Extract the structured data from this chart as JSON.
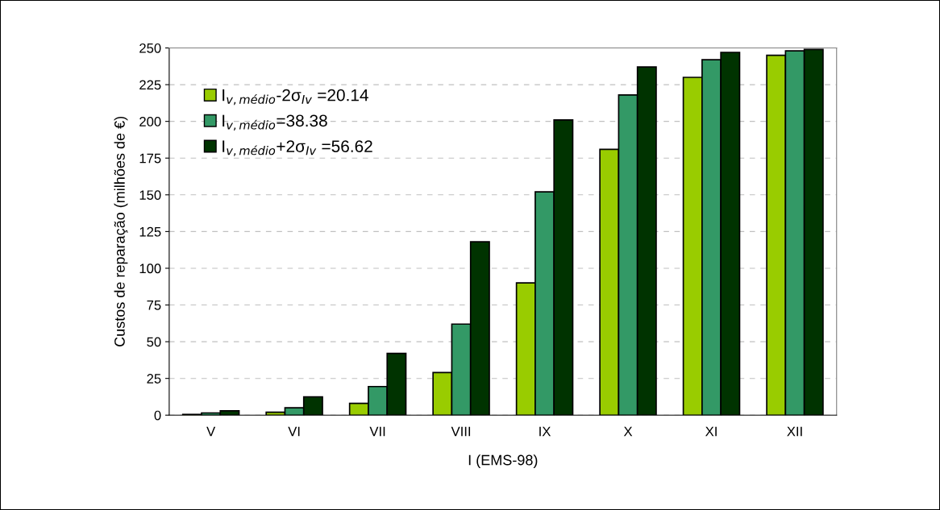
{
  "chart_data": {
    "type": "bar",
    "xlabel": "I (EMS-98)",
    "ylabel": "Custos de reparação (milhões de €)",
    "categories": [
      "V",
      "VI",
      "VII",
      "VIII",
      "IX",
      "X",
      "XI",
      "XII"
    ],
    "series": [
      {
        "name": "I$_{v,médio}$-2σ$_{Iv}$ =20.14",
        "color": "#99cc00",
        "values": [
          0.5,
          2,
          8,
          29,
          90,
          181,
          230,
          245
        ]
      },
      {
        "name": "I$_{v,médio}$=38.38",
        "color": "#339966",
        "values": [
          1.5,
          5,
          19.5,
          62,
          152,
          218,
          242,
          248
        ]
      },
      {
        "name": "I$_{v,médio}$+2σ$_{Iv}$ =56.62",
        "color": "#003300",
        "values": [
          3,
          12.5,
          42,
          118,
          201,
          237,
          247,
          249
        ]
      }
    ],
    "ylim": [
      0,
      250
    ],
    "yticks": [
      0,
      25,
      50,
      75,
      100,
      125,
      150,
      175,
      200,
      225,
      250
    ],
    "grid": "y",
    "legend": "top left"
  }
}
